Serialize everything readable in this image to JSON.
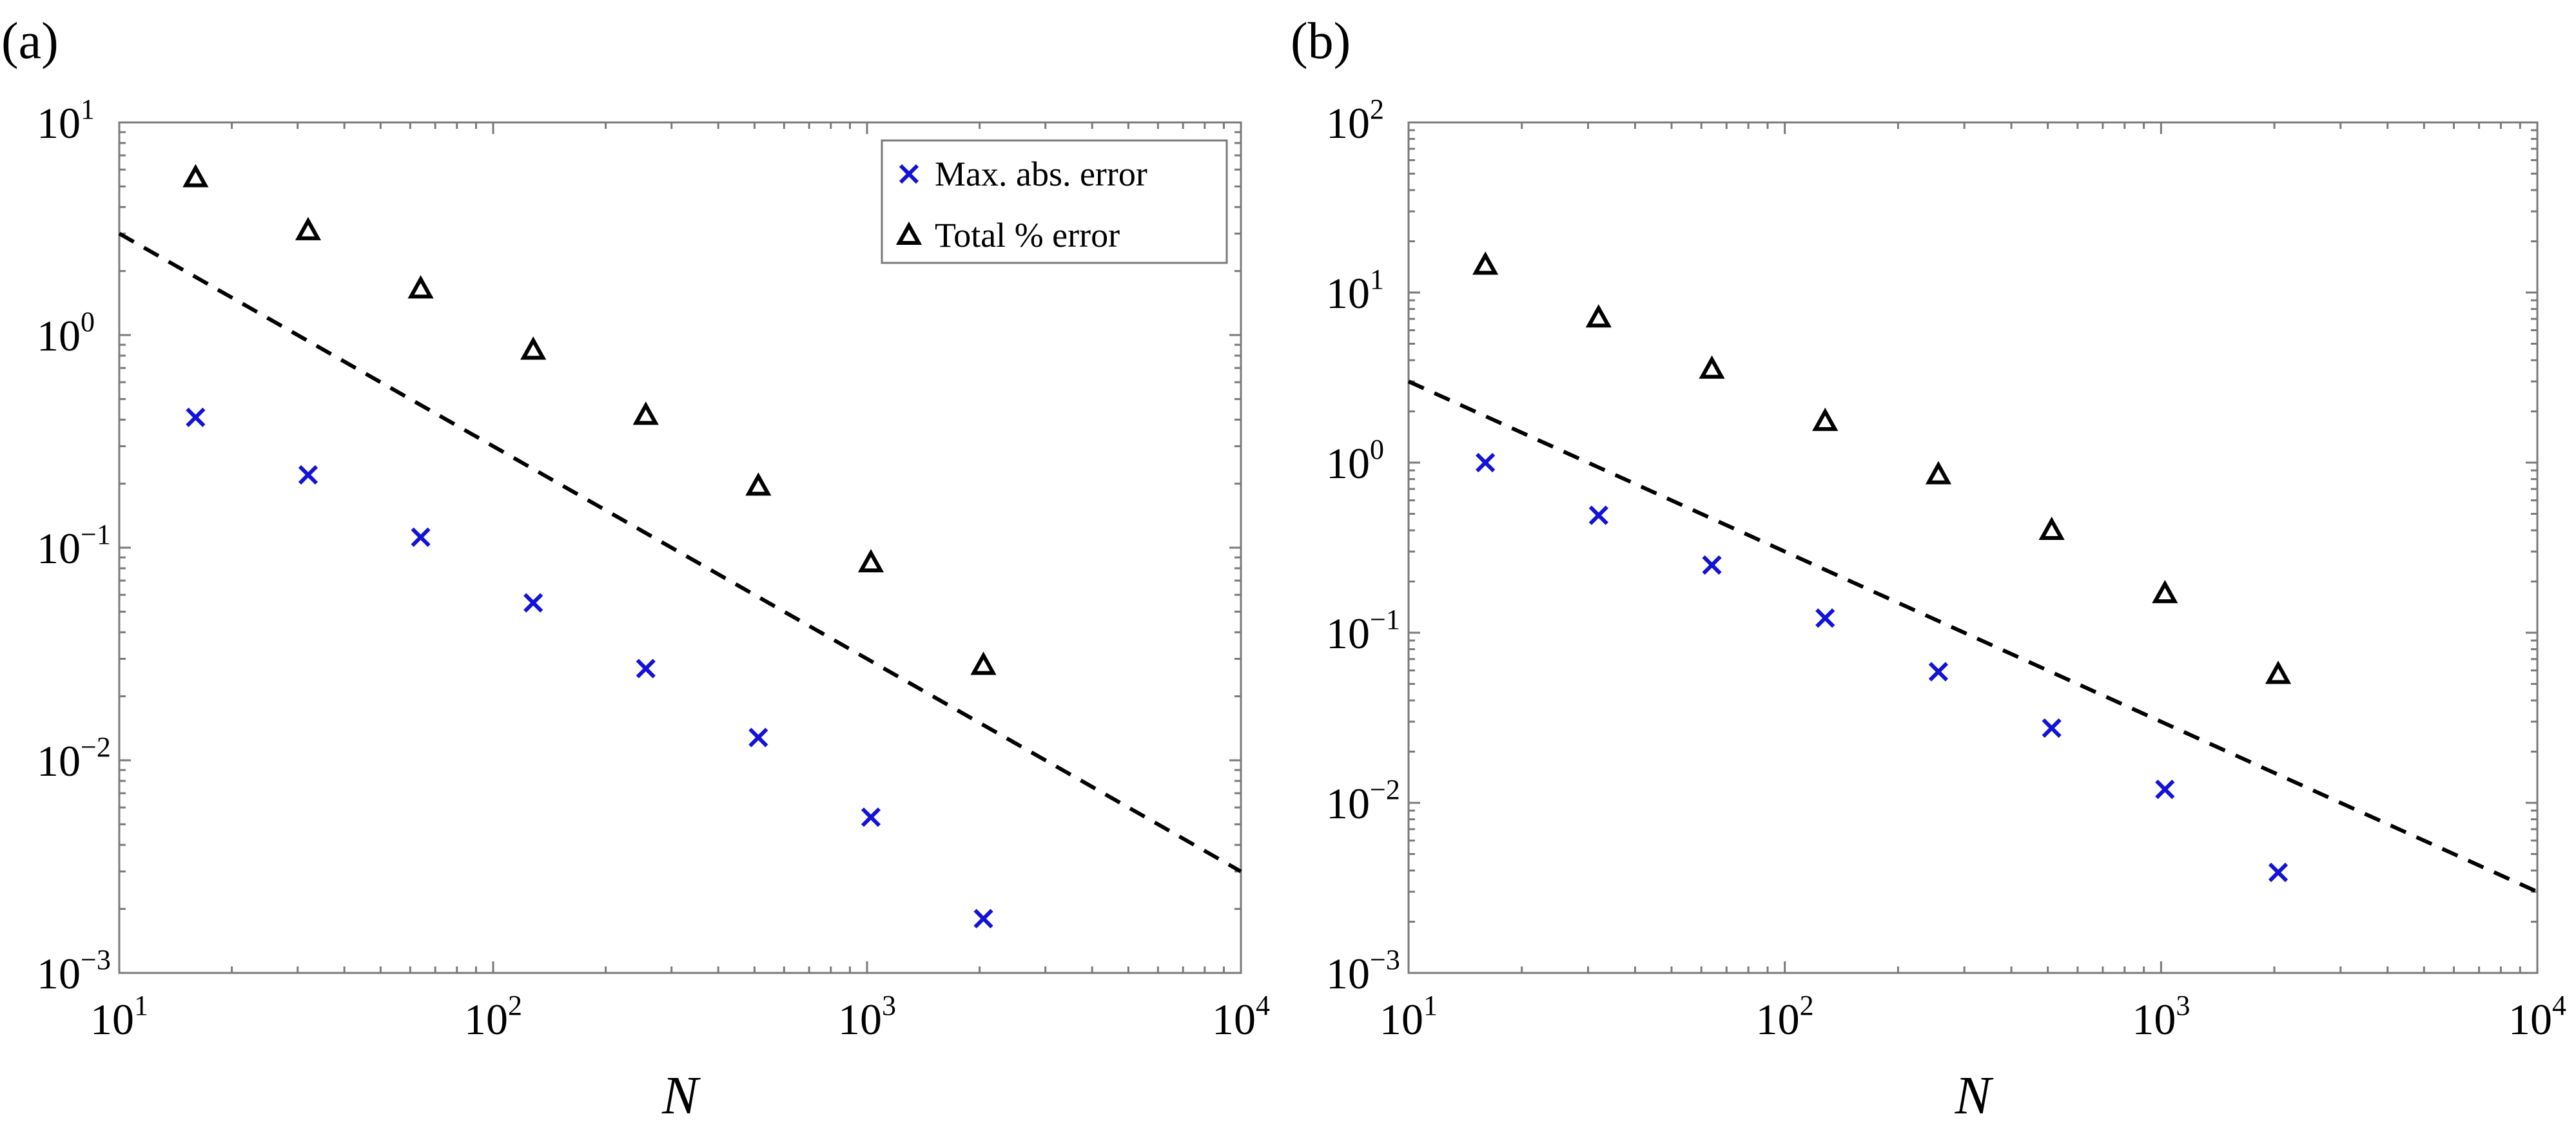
{
  "chart_data": [
    {
      "panel": "(a)",
      "type": "scatter",
      "xlabel": "N",
      "ylabel": "",
      "xscale": "log",
      "yscale": "log",
      "xlim": [
        10,
        10000
      ],
      "ylim": [
        0.001,
        10
      ],
      "xticks": [
        {
          "base": "10",
          "exp": "1"
        },
        {
          "base": "10",
          "exp": "2"
        },
        {
          "base": "10",
          "exp": "3"
        },
        {
          "base": "10",
          "exp": "4"
        }
      ],
      "yticks": [
        {
          "base": "10",
          "exp": "−3"
        },
        {
          "base": "10",
          "exp": "−2"
        },
        {
          "base": "10",
          "exp": "−1"
        },
        {
          "base": "10",
          "exp": "0"
        },
        {
          "base": "10",
          "exp": "1"
        }
      ],
      "legend_position": "top-right",
      "series": [
        {
          "name": "Max. abs. error",
          "marker": "x",
          "color": "#1212d8",
          "x": [
            16,
            32,
            64,
            128,
            256,
            512,
            1024,
            2048
          ],
          "y": [
            0.41,
            0.22,
            0.112,
            0.055,
            0.027,
            0.0128,
            0.0054,
            0.0018
          ]
        },
        {
          "name": "Total % error",
          "marker": "triangle",
          "color": "#000000",
          "x": [
            16,
            32,
            64,
            128,
            256,
            512,
            1024,
            2048
          ],
          "y": [
            5.5,
            3.1,
            1.65,
            0.85,
            0.42,
            0.195,
            0.085,
            0.028
          ]
        }
      ],
      "reference_line": {
        "style": "dashed",
        "color": "#000000",
        "x": [
          10,
          10000
        ],
        "y": [
          3,
          0.003
        ]
      }
    },
    {
      "panel": "(b)",
      "type": "scatter",
      "xlabel": "N",
      "ylabel": "",
      "xscale": "log",
      "yscale": "log",
      "xlim": [
        10,
        10000
      ],
      "ylim": [
        0.001,
        100
      ],
      "xticks": [
        {
          "base": "10",
          "exp": "1"
        },
        {
          "base": "10",
          "exp": "2"
        },
        {
          "base": "10",
          "exp": "3"
        },
        {
          "base": "10",
          "exp": "4"
        }
      ],
      "yticks": [
        {
          "base": "10",
          "exp": "−3"
        },
        {
          "base": "10",
          "exp": "−2"
        },
        {
          "base": "10",
          "exp": "−1"
        },
        {
          "base": "10",
          "exp": "0"
        },
        {
          "base": "10",
          "exp": "1"
        },
        {
          "base": "10",
          "exp": "2"
        }
      ],
      "series": [
        {
          "name": "",
          "marker": "x",
          "color": "#1212d8",
          "x": [
            16,
            32,
            64,
            128,
            256,
            512,
            1024,
            2048
          ],
          "y": [
            1.0,
            0.49,
            0.25,
            0.122,
            0.059,
            0.0275,
            0.012,
            0.0039
          ]
        },
        {
          "name": "",
          "marker": "triangle",
          "color": "#000000",
          "x": [
            16,
            32,
            64,
            128,
            256,
            512,
            1024,
            2048
          ],
          "y": [
            14.5,
            7.1,
            3.55,
            1.75,
            0.85,
            0.4,
            0.17,
            0.057
          ]
        }
      ],
      "reference_line": {
        "style": "dashed",
        "color": "#000000",
        "x": [
          10,
          10000
        ],
        "y": [
          3,
          0.003
        ]
      }
    }
  ]
}
